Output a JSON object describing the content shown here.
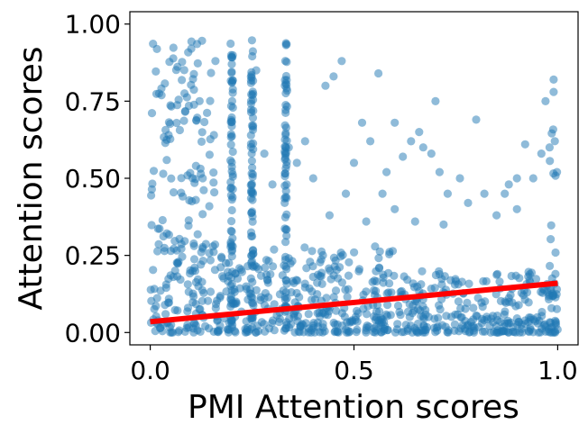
{
  "chart_data": {
    "type": "scatter",
    "title": "",
    "xlabel": "PMI Attention scores",
    "ylabel": "Attention scores",
    "xlim": [
      -0.05,
      1.05
    ],
    "ylim": [
      -0.04,
      1.04
    ],
    "xticks": [
      {
        "value": 0.0,
        "label": "0.0"
      },
      {
        "value": 0.5,
        "label": "0.5"
      },
      {
        "value": 1.0,
        "label": "1.0"
      }
    ],
    "yticks": [
      {
        "value": 0.0,
        "label": "0.00"
      },
      {
        "value": 0.25,
        "label": "0.25"
      },
      {
        "value": 0.5,
        "label": "0.50"
      },
      {
        "value": 0.75,
        "label": "0.75"
      },
      {
        "value": 1.0,
        "label": "1.00"
      }
    ],
    "grid": false,
    "point_color": "#1f77b4",
    "point_opacity": 0.5,
    "fit_line": {
      "color": "#ff0000",
      "x": [
        0.0,
        1.0
      ],
      "y": [
        0.035,
        0.16
      ]
    },
    "dense_bands": [
      {
        "x": [
          0.0,
          0.16
        ],
        "ymax": 0.95
      },
      {
        "x": [
          0.16,
          0.6
        ],
        "ymax": 0.28
      },
      {
        "x": [
          0.6,
          1.0
        ],
        "ymax": 0.2
      },
      {
        "x": [
          0.98,
          1.0
        ],
        "ymax": 0.7
      }
    ],
    "vertical_streaks": [
      {
        "x": 0.2,
        "ymax": 0.95
      },
      {
        "x": 0.25,
        "ymax": 0.95
      },
      {
        "x": 0.333,
        "ymax": 0.94
      }
    ],
    "points": [
      [
        0.16,
        0.88
      ],
      [
        0.2,
        0.87
      ],
      [
        0.26,
        0.85
      ],
      [
        0.28,
        0.58
      ],
      [
        0.3,
        0.48
      ],
      [
        0.33,
        0.42
      ],
      [
        0.36,
        0.55
      ],
      [
        0.4,
        0.5
      ],
      [
        0.43,
        0.8
      ],
      [
        0.45,
        0.83
      ],
      [
        0.47,
        0.88
      ],
      [
        0.48,
        0.45
      ],
      [
        0.5,
        0.55
      ],
      [
        0.52,
        0.68
      ],
      [
        0.54,
        0.62
      ],
      [
        0.56,
        0.84
      ],
      [
        0.57,
        0.45
      ],
      [
        0.58,
        0.52
      ],
      [
        0.6,
        0.68
      ],
      [
        0.62,
        0.57
      ],
      [
        0.64,
        0.62
      ],
      [
        0.66,
        0.65
      ],
      [
        0.67,
        0.6
      ],
      [
        0.69,
        0.58
      ],
      [
        0.7,
        0.75
      ],
      [
        0.71,
        0.52
      ],
      [
        0.73,
        0.45
      ],
      [
        0.76,
        0.5
      ],
      [
        0.78,
        0.42
      ],
      [
        0.8,
        0.69
      ],
      [
        0.82,
        0.45
      ],
      [
        0.85,
        0.38
      ],
      [
        0.87,
        0.45
      ],
      [
        0.88,
        0.48
      ],
      [
        0.9,
        0.5
      ],
      [
        0.92,
        0.61
      ],
      [
        0.94,
        0.5
      ],
      [
        0.96,
        0.58
      ],
      [
        0.97,
        0.75
      ],
      [
        0.99,
        0.82
      ],
      [
        0.99,
        0.78
      ],
      [
        0.98,
        0.6
      ],
      [
        0.6,
        0.4
      ],
      [
        0.65,
        0.36
      ],
      [
        0.72,
        0.35
      ],
      [
        0.38,
        0.62
      ],
      [
        0.34,
        0.6
      ],
      [
        0.44,
        0.38
      ],
      [
        0.53,
        0.36
      ],
      [
        0.9,
        0.4
      ]
    ]
  }
}
